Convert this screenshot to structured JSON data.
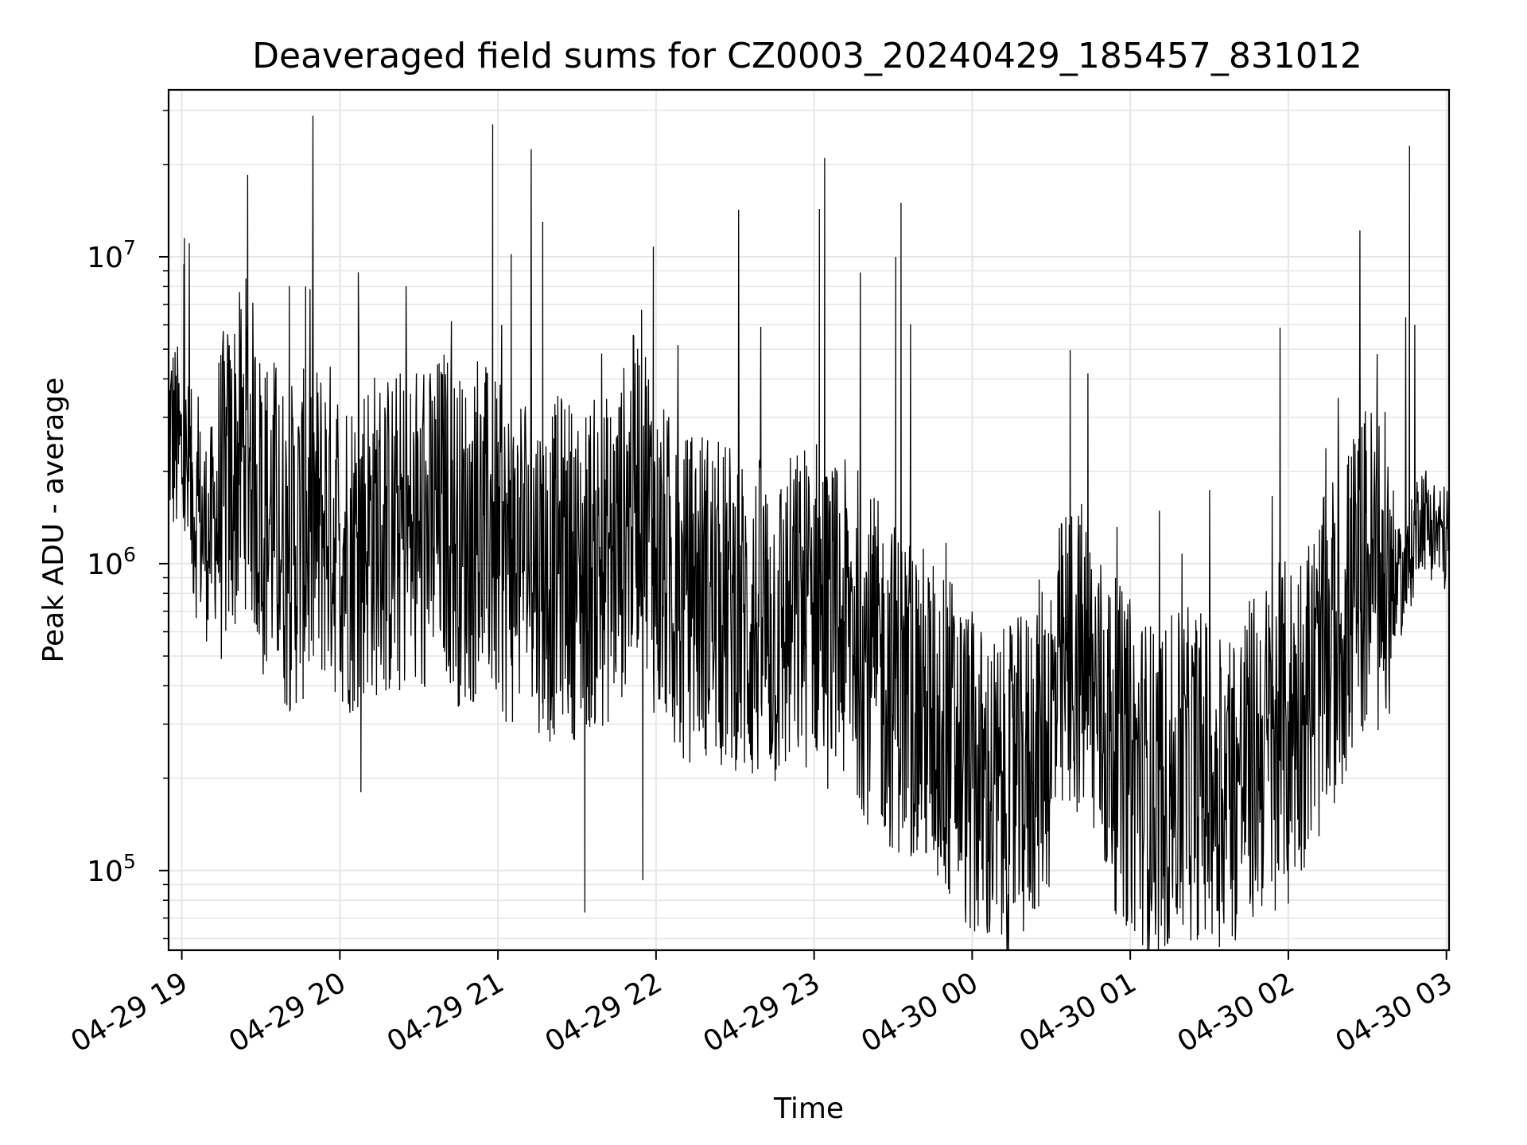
{
  "chart_data": {
    "type": "line",
    "title": "Deaveraged field sums for CZ0003_20240429_185457_831012",
    "xlabel": "Time",
    "ylabel": "Peak ADU - average",
    "x_scale": "time",
    "y_scale": "log",
    "xlim": [
      "2024-04-29T18:55",
      "2024-04-30T03:01"
    ],
    "ylim": [
      55000,
      35000000
    ],
    "grid": true,
    "line_color": "#000000",
    "grid_color": "#e6e6e6",
    "x_tick_labels": [
      "04-29 19",
      "04-29 20",
      "04-29 21",
      "04-29 22",
      "04-29 23",
      "04-30 00",
      "04-30 01",
      "04-30 02",
      "04-30 03"
    ],
    "y_tick_labels": [
      {
        "base": "10",
        "exp": "5"
      },
      {
        "base": "10",
        "exp": "6"
      },
      {
        "base": "10",
        "exp": "7"
      }
    ],
    "series": [
      {
        "x": [
          "2024-04-29T18:55",
          "2024-04-29T19:00",
          "2024-04-29T19:05",
          "2024-04-29T19:10",
          "2024-04-29T19:15",
          "2024-04-29T19:20",
          "2024-04-29T19:25",
          "2024-04-29T19:30",
          "2024-04-29T19:35",
          "2024-04-29T19:40",
          "2024-04-29T19:45",
          "2024-04-29T19:50",
          "2024-04-29T19:55",
          "2024-04-29T20:00",
          "2024-04-29T20:05",
          "2024-04-29T20:10",
          "2024-04-29T20:15",
          "2024-04-29T20:20",
          "2024-04-29T20:25",
          "2024-04-29T20:30",
          "2024-04-29T20:35",
          "2024-04-29T20:40",
          "2024-04-29T20:45",
          "2024-04-29T20:50",
          "2024-04-29T20:55",
          "2024-04-29T21:00",
          "2024-04-29T21:05",
          "2024-04-29T21:10",
          "2024-04-29T21:15",
          "2024-04-29T21:20",
          "2024-04-29T21:25",
          "2024-04-29T21:30",
          "2024-04-29T21:35",
          "2024-04-29T21:40",
          "2024-04-29T21:45",
          "2024-04-29T21:50",
          "2024-04-29T21:55",
          "2024-04-29T22:00",
          "2024-04-29T22:05",
          "2024-04-29T22:10",
          "2024-04-29T22:15",
          "2024-04-29T22:20",
          "2024-04-29T22:25",
          "2024-04-29T22:30",
          "2024-04-29T22:35",
          "2024-04-29T22:40",
          "2024-04-29T22:45",
          "2024-04-29T22:50",
          "2024-04-29T22:55",
          "2024-04-29T23:00",
          "2024-04-29T23:05",
          "2024-04-29T23:10",
          "2024-04-29T23:15",
          "2024-04-29T23:20",
          "2024-04-29T23:25",
          "2024-04-29T23:30",
          "2024-04-29T23:35",
          "2024-04-29T23:40",
          "2024-04-29T23:45",
          "2024-04-29T23:50",
          "2024-04-29T23:55",
          "2024-04-30T00:00",
          "2024-04-30T00:05",
          "2024-04-30T00:10",
          "2024-04-30T00:15",
          "2024-04-30T00:20",
          "2024-04-30T00:25",
          "2024-04-30T00:30",
          "2024-04-30T00:35",
          "2024-04-30T00:40",
          "2024-04-30T00:45",
          "2024-04-30T00:50",
          "2024-04-30T00:55",
          "2024-04-30T01:00",
          "2024-04-30T01:05",
          "2024-04-30T01:10",
          "2024-04-30T01:15",
          "2024-04-30T01:20",
          "2024-04-30T01:25",
          "2024-04-30T01:30",
          "2024-04-30T01:35",
          "2024-04-30T01:40",
          "2024-04-30T01:45",
          "2024-04-30T01:50",
          "2024-04-30T01:55",
          "2024-04-30T02:00",
          "2024-04-30T02:05",
          "2024-04-30T02:10",
          "2024-04-30T02:15",
          "2024-04-30T02:20",
          "2024-04-30T02:25",
          "2024-04-30T02:30",
          "2024-04-30T02:35",
          "2024-04-30T02:40",
          "2024-04-30T02:45",
          "2024-04-30T02:50",
          "2024-04-30T02:55",
          "2024-04-30T03:00"
        ],
        "y": [
          2800000,
          2200000,
          1500000,
          1200000,
          1600000,
          2000000,
          2600000,
          1500000,
          1400000,
          1100000,
          1200000,
          1300000,
          1400000,
          1200000,
          1100000,
          1300000,
          1250000,
          1200000,
          1300000,
          1100000,
          1300000,
          1500000,
          1200000,
          1200000,
          1300000,
          1100000,
          1000000,
          1200000,
          1000000,
          900000,
          1100000,
          900000,
          1000000,
          1000000,
          1100000,
          1500000,
          2000000,
          1000000,
          900000,
          700000,
          850000,
          800000,
          700000,
          750000,
          600000,
          650000,
          600000,
          650000,
          700000,
          800000,
          650000,
          600000,
          650000,
          500000,
          450000,
          400000,
          380000,
          350000,
          300000,
          280000,
          250000,
          200000,
          180000,
          170000,
          180000,
          200000,
          250000,
          300000,
          450000,
          500000,
          400000,
          300000,
          250000,
          220000,
          200000,
          180000,
          190000,
          200000,
          210000,
          200000,
          190000,
          200000,
          220000,
          250000,
          280000,
          300000,
          350000,
          400000,
          500000,
          600000,
          800000,
          1000000,
          900000,
          850000,
          900000,
          1500000,
          1300000,
          1200000
        ],
        "peaks": [
          {
            "x": "2024-04-29T19:01",
            "y": 11500000
          },
          {
            "x": "2024-04-29T19:25",
            "y": 18500000
          },
          {
            "x": "2024-04-29T19:47",
            "y": 8000000
          },
          {
            "x": "2024-04-29T20:07",
            "y": 8900000
          },
          {
            "x": "2024-04-29T20:58",
            "y": 27000000
          },
          {
            "x": "2024-04-29T21:05",
            "y": 10200000
          },
          {
            "x": "2024-04-29T21:17",
            "y": 13000000
          },
          {
            "x": "2024-04-29T21:59",
            "y": 10800000
          },
          {
            "x": "2024-04-29T23:02",
            "y": 14300000
          },
          {
            "x": "2024-04-29T23:04",
            "y": 21000000
          },
          {
            "x": "2024-04-29T23:31",
            "y": 10000000
          },
          {
            "x": "2024-04-29T23:33",
            "y": 15000000
          },
          {
            "x": "2024-04-30T02:46",
            "y": 23000000
          },
          {
            "x": "2024-04-30T02:48",
            "y": 6000000
          }
        ],
        "dips": [
          {
            "x": "2024-04-29T20:08",
            "y": 180000
          },
          {
            "x": "2024-04-29T21:33",
            "y": 73000
          },
          {
            "x": "2024-04-29T21:55",
            "y": 93000
          },
          {
            "x": "2024-04-30T00:59",
            "y": 72000
          },
          {
            "x": "2024-04-30T01:55",
            "y": 74000
          },
          {
            "x": "2024-04-30T02:00",
            "y": 78000
          }
        ]
      }
    ]
  }
}
